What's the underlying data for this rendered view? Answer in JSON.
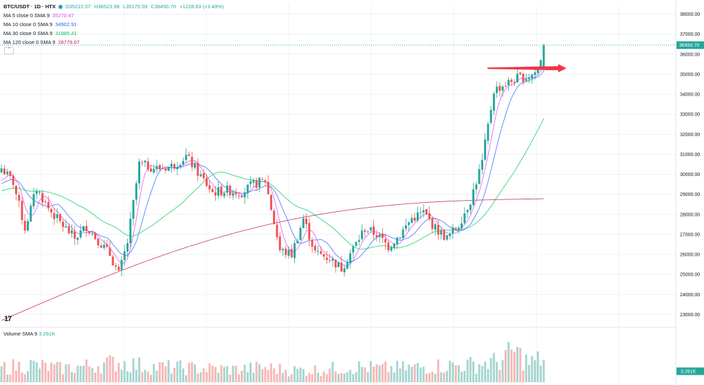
{
  "header": {
    "symbol": "BTC/USDT · 1D · HTX",
    "ohlc": {
      "open": "O35222.07",
      "high": "H36523.98",
      "low": "L35175.59",
      "close": "C36450.70",
      "change": "+1228.63 (+3.49%)"
    }
  },
  "indicators": [
    {
      "label": "MA 5 close 0 SMA 9",
      "value": "35270.47",
      "color": "#e040fb"
    },
    {
      "label": "MA 10 close 0 SMA 9",
      "value": "34902.91",
      "color": "#2962ff"
    },
    {
      "label": "MA 30 close 0 SMA 9",
      "value": "31885.41",
      "color": "#00c853"
    },
    {
      "label": "MA 120 close 0 SMA 9",
      "value": "28779.07",
      "color": "#c2185b"
    }
  ],
  "volume": {
    "label": "Volume SMA 9",
    "value": "3.261K",
    "axis_label": "3.261K"
  },
  "colors": {
    "up": "#26a69a",
    "down": "#ef5350",
    "grid": "#eef0f3",
    "arrow": "#f23645"
  },
  "chart_data": {
    "type": "candlestick",
    "ylim": [
      22500,
      38500
    ],
    "yticks": [
      23000,
      24000,
      25000,
      26000,
      27000,
      28000,
      29000,
      30000,
      31000,
      32000,
      33000,
      34000,
      35000,
      36000,
      37000,
      38000
    ],
    "ytick_labels": [
      "23000.00",
      "24000.00",
      "25000.00",
      "26000.00",
      "27000.00",
      "28000.00",
      "29000.00",
      "30000.00",
      "31000.00",
      "32000.00",
      "33000.00",
      "34000.00",
      "35000.00",
      "36000.00",
      "37000.00",
      "38000.00"
    ],
    "last_price": 36450.7,
    "last_price_label": "36450.70",
    "close_anchors": [
      [
        0,
        30300
      ],
      [
        4,
        29600
      ],
      [
        8,
        27300
      ],
      [
        12,
        29300
      ],
      [
        16,
        28300
      ],
      [
        20,
        27600
      ],
      [
        25,
        26800
      ],
      [
        29,
        27400
      ],
      [
        33,
        26700
      ],
      [
        37,
        26000
      ],
      [
        40,
        25000
      ],
      [
        43,
        26600
      ],
      [
        47,
        30500
      ],
      [
        53,
        30300
      ],
      [
        58,
        30400
      ],
      [
        63,
        30900
      ],
      [
        67,
        30100
      ],
      [
        72,
        29100
      ],
      [
        77,
        29200
      ],
      [
        82,
        29100
      ],
      [
        86,
        29500
      ],
      [
        90,
        29700
      ],
      [
        95,
        26200
      ],
      [
        99,
        26000
      ],
      [
        103,
        27800
      ],
      [
        107,
        26100
      ],
      [
        112,
        25800
      ],
      [
        116,
        25300
      ],
      [
        120,
        26300
      ],
      [
        124,
        27300
      ],
      [
        128,
        27000
      ],
      [
        132,
        26400
      ],
      [
        136,
        27000
      ],
      [
        140,
        27800
      ],
      [
        144,
        28100
      ],
      [
        148,
        27300
      ],
      [
        152,
        26800
      ],
      [
        156,
        27500
      ],
      [
        160,
        28700
      ],
      [
        164,
        30600
      ],
      [
        168,
        34200
      ],
      [
        172,
        34500
      ],
      [
        176,
        34800
      ],
      [
        180,
        34900
      ],
      [
        183,
        35200
      ],
      [
        185,
        36450
      ]
    ],
    "volume_anchors": [
      [
        0,
        1.6
      ],
      [
        10,
        1.9
      ],
      [
        20,
        1.5
      ],
      [
        30,
        1.8
      ],
      [
        40,
        2.2
      ],
      [
        50,
        1.7
      ],
      [
        60,
        1.6
      ],
      [
        70,
        1.5
      ],
      [
        80,
        1.4
      ],
      [
        90,
        1.6
      ],
      [
        100,
        1.3
      ],
      [
        110,
        1.4
      ],
      [
        120,
        1.7
      ],
      [
        130,
        1.5
      ],
      [
        140,
        1.6
      ],
      [
        150,
        1.8
      ],
      [
        160,
        1.9
      ],
      [
        170,
        2.3
      ],
      [
        175,
        3.4
      ],
      [
        180,
        2.1
      ],
      [
        185,
        2.6
      ]
    ],
    "volume_ylim": [
      0,
      5
    ]
  }
}
